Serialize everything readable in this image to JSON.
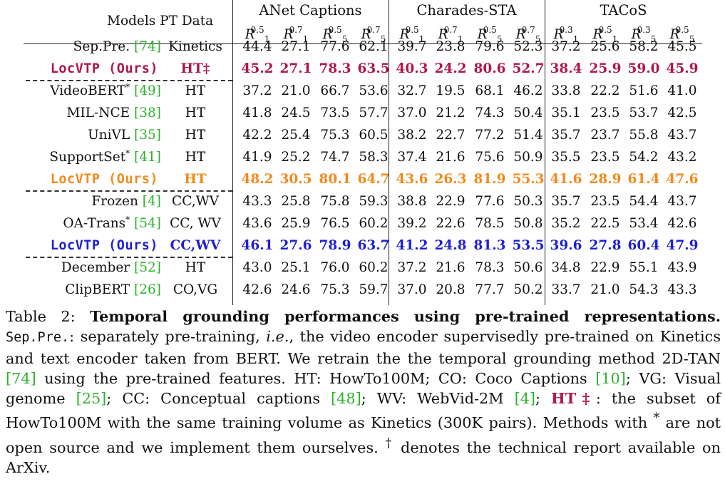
{
  "table": {
    "col_headers": {
      "models": "Models",
      "pt_data": "PT Data"
    },
    "groups": [
      "ANet Captions",
      "Charades-STA",
      "TACoS"
    ],
    "metrics": [
      {
        "k": "1",
        "iou": "0.5"
      },
      {
        "k": "1",
        "iou": "0.7"
      },
      {
        "k": "5",
        "iou": "0.5"
      },
      {
        "k": "5",
        "iou": "0.7"
      },
      {
        "k": "1",
        "iou": "0.5"
      },
      {
        "k": "1",
        "iou": "0.7"
      },
      {
        "k": "5",
        "iou": "0.5"
      },
      {
        "k": "5",
        "iou": "0.7"
      },
      {
        "k": "1",
        "iou": "0.3"
      },
      {
        "k": "1",
        "iou": "0.5"
      },
      {
        "k": "5",
        "iou": "0.3"
      },
      {
        "k": "5",
        "iou": "0.5"
      }
    ],
    "metric_symbol": "R",
    "rows": [
      {
        "name": "Sep.Pre.",
        "cite": "[74]",
        "ast": "",
        "pt": "Kinetics",
        "style": "plain",
        "values": [
          "44.4",
          "27.1",
          "77.6",
          "62.1",
          "39.7",
          "23.8",
          "79.6",
          "52.3",
          "37.2",
          "25.6",
          "58.2",
          "45.5"
        ]
      },
      {
        "name": "LocVTP (Ours)",
        "cite": "",
        "ast": "",
        "pt": "HT‡",
        "style": "red",
        "values": [
          "45.2",
          "27.1",
          "78.3",
          "63.5",
          "40.3",
          "24.2",
          "80.6",
          "52.7",
          "38.4",
          "25.9",
          "59.0",
          "45.9"
        ]
      },
      {
        "name": "VideoBERT",
        "cite": "[49]",
        "ast": "*",
        "pt": "HT",
        "style": "plain",
        "values": [
          "37.2",
          "21.0",
          "66.7",
          "53.6",
          "32.7",
          "19.5",
          "68.1",
          "46.2",
          "33.8",
          "22.2",
          "51.6",
          "41.0"
        ]
      },
      {
        "name": "MIL-NCE",
        "cite": "[38]",
        "ast": "",
        "pt": "HT",
        "style": "plain",
        "values": [
          "41.8",
          "24.5",
          "73.5",
          "57.7",
          "37.0",
          "21.2",
          "74.3",
          "50.4",
          "35.1",
          "23.5",
          "53.7",
          "42.5"
        ]
      },
      {
        "name": "UniVL",
        "cite": "[35]",
        "ast": "",
        "pt": "HT",
        "style": "plain",
        "values": [
          "42.2",
          "25.4",
          "75.3",
          "60.5",
          "38.2",
          "22.7",
          "77.2",
          "51.4",
          "35.7",
          "23.7",
          "55.8",
          "43.7"
        ]
      },
      {
        "name": "SupportSet",
        "cite": "[41]",
        "ast": "*",
        "pt": "HT",
        "style": "plain",
        "values": [
          "41.9",
          "25.2",
          "74.7",
          "58.3",
          "37.4",
          "21.6",
          "75.6",
          "50.9",
          "35.5",
          "23.5",
          "54.2",
          "43.2"
        ]
      },
      {
        "name": "LocVTP (Ours)",
        "cite": "",
        "ast": "",
        "pt": "HT",
        "style": "orange",
        "values": [
          "48.2",
          "30.5",
          "80.1",
          "64.7",
          "43.6",
          "26.3",
          "81.9",
          "55.3",
          "41.6",
          "28.9",
          "61.4",
          "47.6"
        ]
      },
      {
        "name": "Frozen",
        "cite": "[4]",
        "ast": "",
        "pt": "CC,WV",
        "style": "plain",
        "values": [
          "43.3",
          "25.8",
          "75.8",
          "59.3",
          "38.8",
          "22.9",
          "77.6",
          "50.3",
          "35.7",
          "23.5",
          "54.4",
          "43.7"
        ]
      },
      {
        "name": "OA-Trans",
        "cite": "[54]",
        "ast": "*",
        "pt": "CC, WV",
        "style": "plain",
        "values": [
          "43.6",
          "25.9",
          "76.5",
          "60.2",
          "39.2",
          "22.6",
          "78.5",
          "50.8",
          "35.2",
          "22.5",
          "53.4",
          "42.6"
        ]
      },
      {
        "name": "LocVTP (Ours)",
        "cite": "",
        "ast": "",
        "pt": "CC,WV",
        "style": "blue",
        "values": [
          "46.1",
          "27.6",
          "78.9",
          "63.7",
          "41.2",
          "24.8",
          "81.3",
          "53.5",
          "39.6",
          "27.8",
          "60.4",
          "47.9"
        ]
      },
      {
        "name": "December",
        "cite": "[52]",
        "ast": "",
        "pt": "HT",
        "style": "plain",
        "values": [
          "43.0",
          "25.1",
          "76.0",
          "60.2",
          "37.2",
          "21.6",
          "78.3",
          "50.6",
          "34.8",
          "22.9",
          "55.1",
          "43.9"
        ]
      },
      {
        "name": "ClipBERT",
        "cite": "[26]",
        "ast": "",
        "pt": "CO,VG",
        "style": "plain",
        "values": [
          "42.6",
          "24.6",
          "75.3",
          "59.7",
          "37.0",
          "20.8",
          "77.7",
          "50.2",
          "33.7",
          "21.0",
          "54.3",
          "43.3"
        ]
      }
    ]
  },
  "caption": {
    "label": "Table 2:",
    "title": "Temporal grounding performances using pre-trained representations.",
    "sep_pre": "Sep.Pre.",
    "p1": ": separately pre-training,",
    "ie": "i.e.",
    "p2": ", the video encoder supervisedly pre-trained on Kinetics and text encoder taken from BERT. We retrain the the temporal grounding method 2D-TAN",
    "c74": "[74]",
    "p3": "using the pre-trained features. HT: HowTo100M; CO: Coco Captions",
    "c10": "[10]",
    "p4": "; VG: Visual genome",
    "c25": "[25]",
    "p5": "; CC: Conceptual captions",
    "c48": "[48]",
    "p6": "; WV: WebVid-2M",
    "c4": "[4]",
    "p7": ";",
    "ht_dagger": "HT‡",
    "p8": ": the subset of HowTo100M with the same training volume as Kinetics (300K pairs). Methods with",
    "star": "*",
    "p9": "are not open source and we implement them ourselves.",
    "dagger": "†",
    "p10": "denotes the technical report available on ArXiv."
  }
}
